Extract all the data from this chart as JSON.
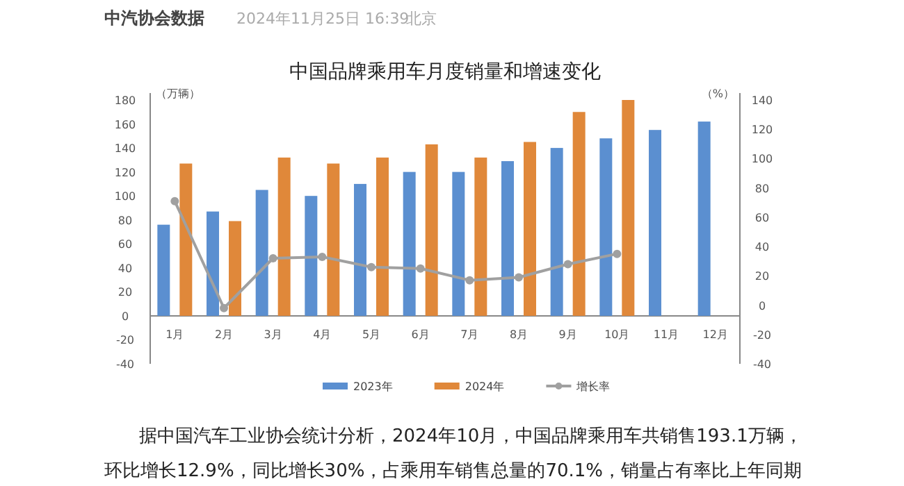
{
  "chart_data": {
    "type": "bar",
    "title": "中国品牌乘用车月度销量和增速变化",
    "ylabel": "（万辆）",
    "y2label": "（%）",
    "categories": [
      "1月",
      "2月",
      "3月",
      "4月",
      "5月",
      "6月",
      "7月",
      "8月",
      "9月",
      "10月",
      "11月",
      "12月"
    ],
    "series": [
      {
        "name": "2023年",
        "color": "#5b8fd0",
        "values": [
          76,
          87,
          105,
          100,
          110,
          120,
          120,
          129,
          140,
          148,
          155,
          162
        ]
      },
      {
        "name": "2024年",
        "color": "#e0883a",
        "values": [
          127,
          79,
          132,
          127,
          132,
          143,
          132,
          145,
          170,
          180,
          null,
          null
        ]
      },
      {
        "name": "增长率",
        "type": "line",
        "axis": "y2",
        "color": "#a0a0a0",
        "marker": "circle",
        "values": [
          71,
          -2,
          32,
          33,
          26,
          25,
          17,
          19,
          28,
          35,
          null,
          null
        ]
      }
    ],
    "ylim": [
      -40,
      180
    ],
    "yticks": [
      -40,
      -20,
      0,
      20,
      40,
      60,
      80,
      100,
      120,
      140,
      160,
      180
    ],
    "y2lim": [
      -40,
      140
    ],
    "y2ticks": [
      -40,
      -20,
      0,
      20,
      40,
      60,
      80,
      100,
      120,
      140
    ],
    "legend": "bottom",
    "annotations": [
      "中汽协会数据",
      "2024年11月25日 16:39",
      "北京",
      "据中国汽车工业协会统计分析，2024年10月，中国品牌乘用车共销售193.1万辆，",
      "环比增长12.9%，同比增长30%，占乘用车销售总量的70.1%，销量占有率比上年同期"
    ]
  }
}
